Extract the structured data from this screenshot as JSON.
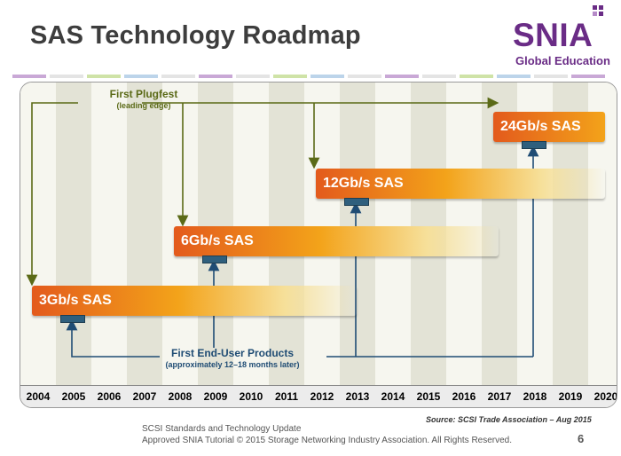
{
  "header": {
    "title": "SAS Technology Roadmap"
  },
  "logo": {
    "word": "SNIA",
    "subtitle": "Global Education"
  },
  "timeline": {
    "years": [
      "2004",
      "2005",
      "2006",
      "2007",
      "2008",
      "2009",
      "2010",
      "2011",
      "2012",
      "2013",
      "2014",
      "2015",
      "2016",
      "2017",
      "2018",
      "2019",
      "2020"
    ],
    "start_year": 2004,
    "end_year": 2020
  },
  "bars": [
    {
      "label": "3Gb/s SAS",
      "start": 2004,
      "end": 2013,
      "plugfest": 2004,
      "end_user": 2005
    },
    {
      "label": "6Gb/s SAS",
      "start": 2008,
      "end": 2017,
      "plugfest": 2008,
      "end_user": 2009
    },
    {
      "label": "12Gb/s SAS",
      "start": 2012,
      "end": 2020,
      "plugfest": 2012,
      "end_user": 2013
    },
    {
      "label": "24Gb/s SAS",
      "start": 2017,
      "end": 2020,
      "plugfest": 2017,
      "end_user": 2018
    }
  ],
  "annotations": {
    "plugfest_title": "First Plugfest",
    "plugfest_sub": "(leading edge)",
    "enduser_title": "First End-User Products",
    "enduser_sub": "(approximately 12–18 months later)"
  },
  "colors": {
    "bar_start": "#e35a1c",
    "bar_mid": "#f3a31a",
    "plugfest_line": "#5b6a17",
    "enduser_line": "#1f4c74",
    "brand": "#6a2c86"
  },
  "footer": {
    "source": "Source:  SCSI Trade Association – Aug 2015",
    "line1": "SCSI Standards and Technology Update",
    "line2": "Approved SNIA Tutorial © 2015 Storage Networking Industry Association. All Rights Reserved.",
    "page": "6"
  }
}
